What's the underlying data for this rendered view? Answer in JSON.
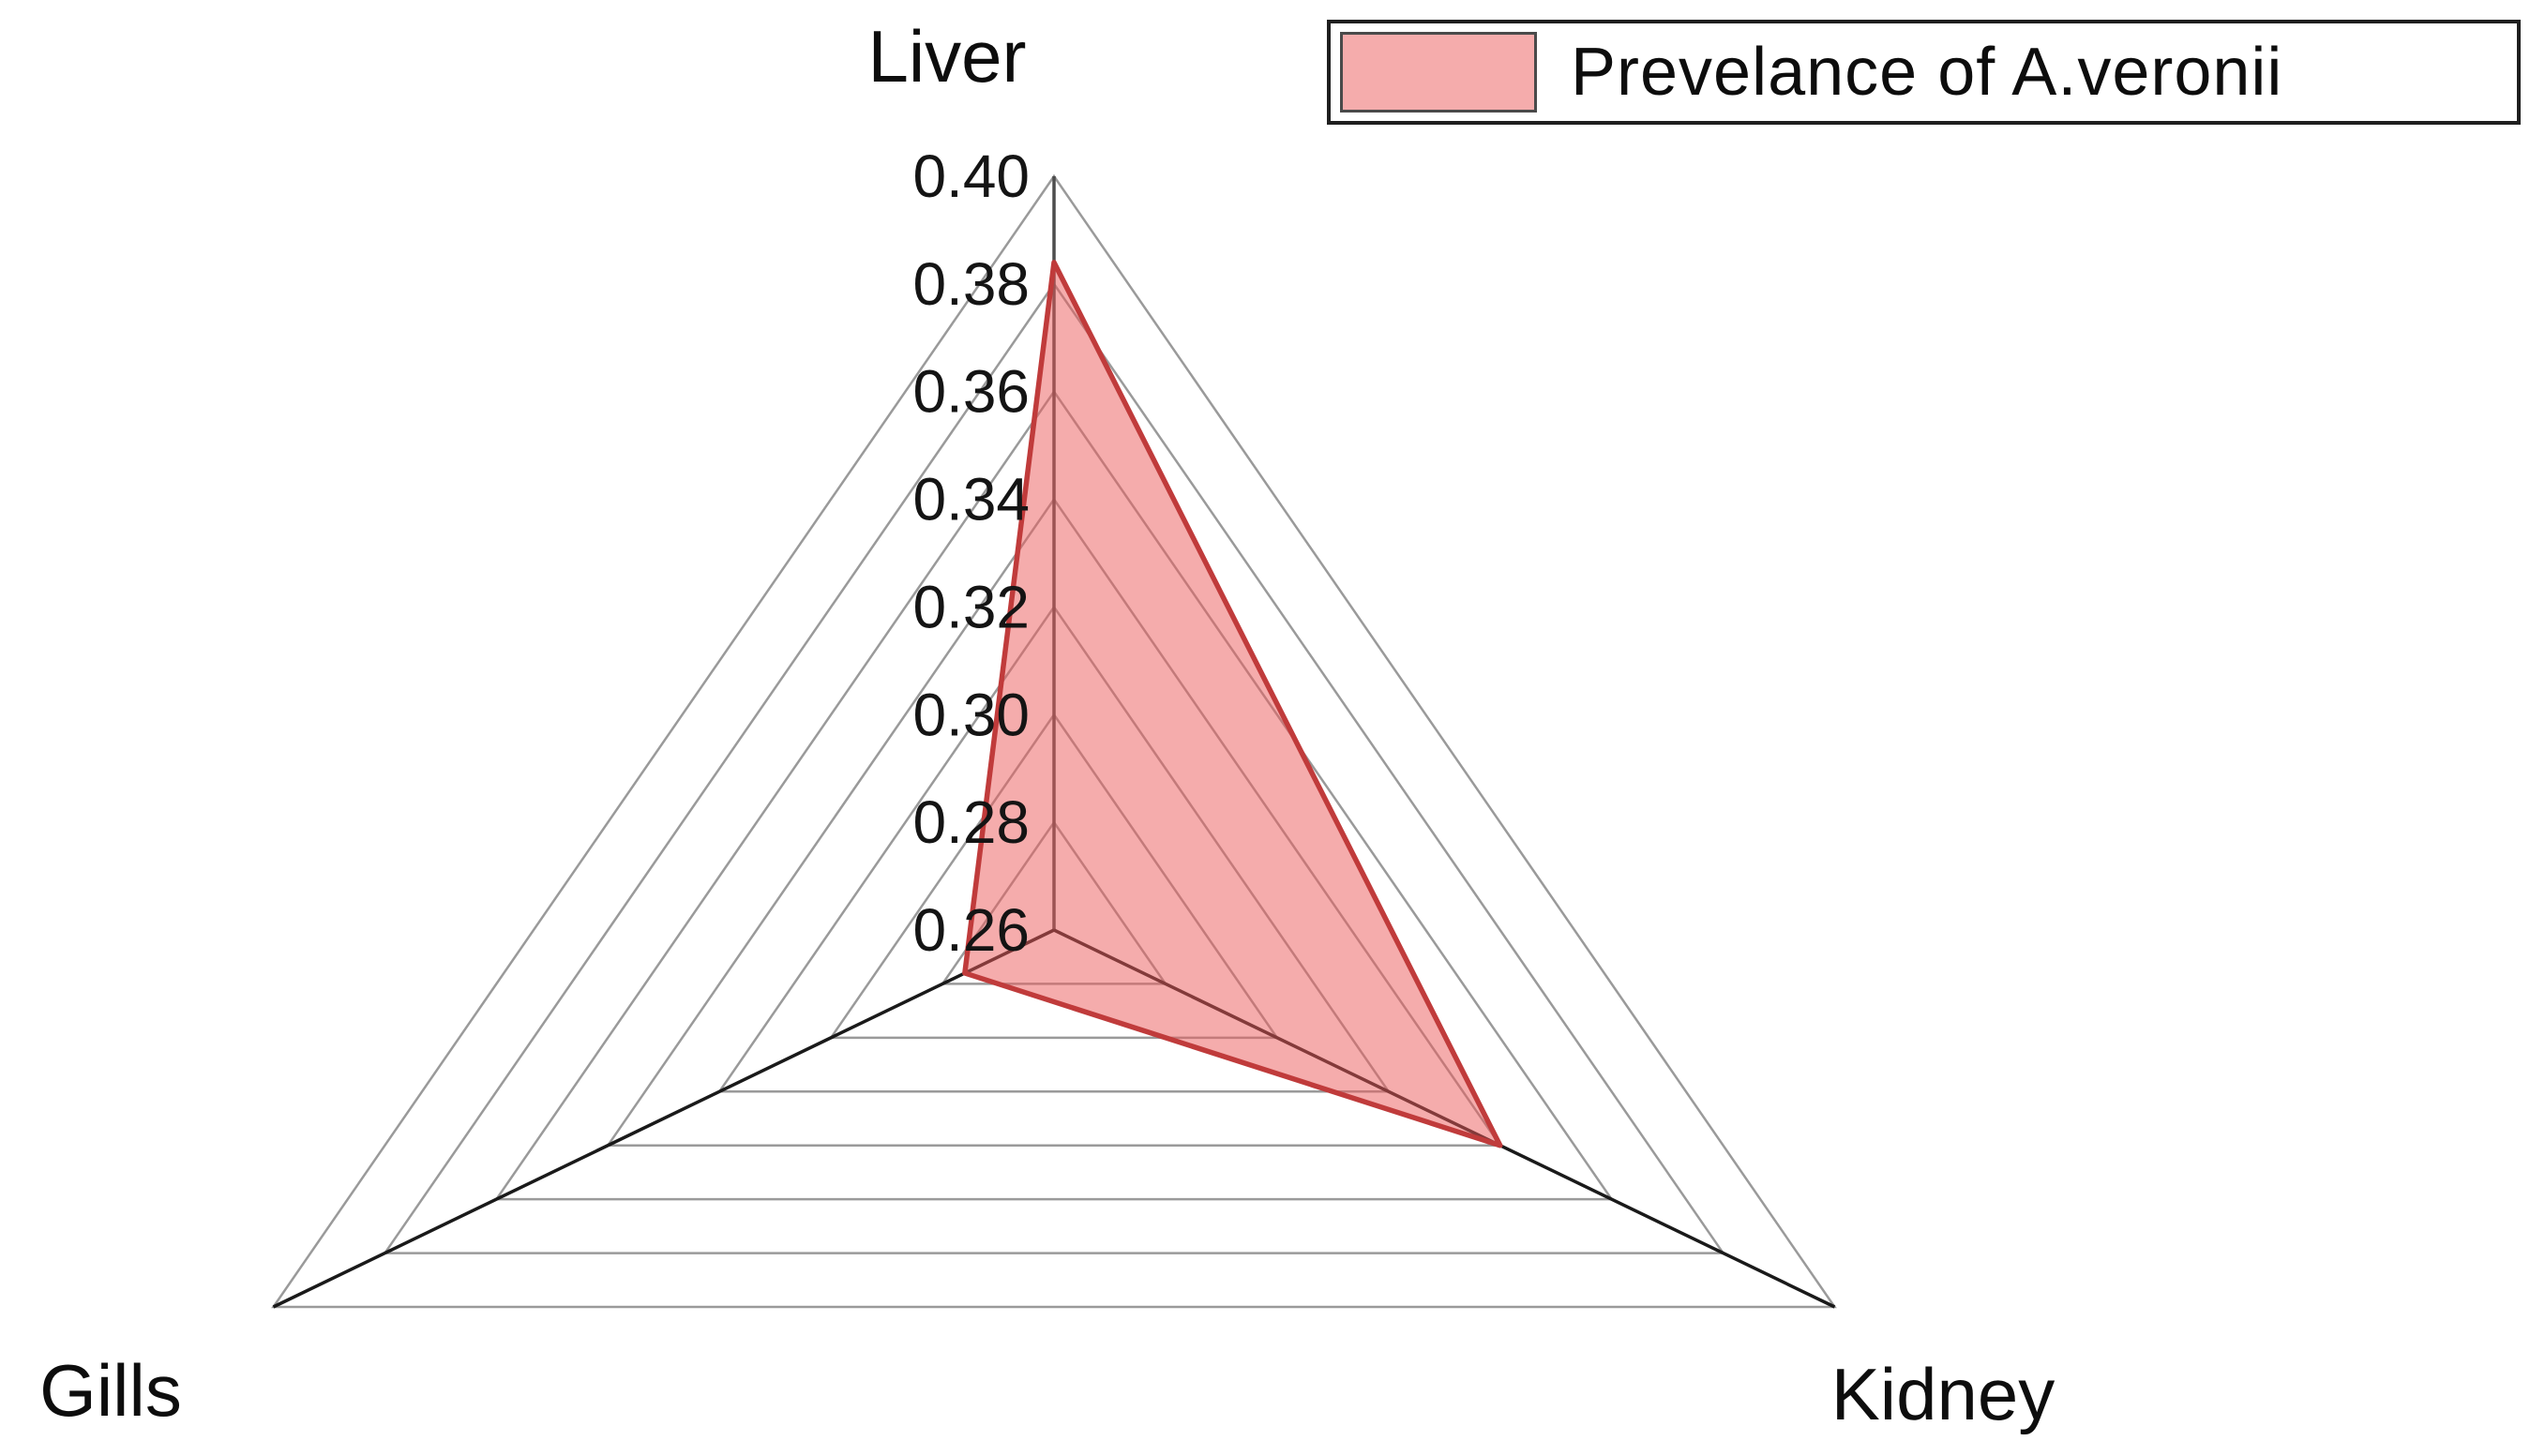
{
  "legend": {
    "label": "Prevelance of A.veronii"
  },
  "chart_data": {
    "type": "radar",
    "title": "",
    "categories": [
      "Liver",
      "Kidney",
      "Gills"
    ],
    "series": [
      {
        "name": "Prevelance of A.veronii",
        "values": [
          0.384,
          0.34,
          0.276
        ]
      }
    ],
    "r_axis": {
      "min": 0.26,
      "max": 0.4,
      "step": 0.02,
      "tick_labels": [
        "0.40",
        "0.38",
        "0.36",
        "0.34",
        "0.32",
        "0.30",
        "0.28",
        "0.26"
      ]
    },
    "grid": true,
    "grid_ring_count": 7,
    "legend_position": "top-right",
    "colors": {
      "fill": "#EB5A5A",
      "fill_opacity": 0.5,
      "stroke": "#C03B3B",
      "grid": "#9A9A9A",
      "spoke_main": "#4D4D4D",
      "spoke_bottom": "#1A1A1A",
      "text": "#141414"
    }
  }
}
